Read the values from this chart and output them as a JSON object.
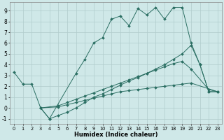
{
  "xlabel": "Humidex (Indice chaleur)",
  "background_color": "#cfe8e8",
  "grid_color": "#b0cccc",
  "line_color": "#2a6e62",
  "xlim": [
    -0.5,
    23.5
  ],
  "ylim": [
    -1.5,
    9.8
  ],
  "yticks": [
    -1,
    0,
    1,
    2,
    3,
    4,
    5,
    6,
    7,
    8,
    9
  ],
  "xticks": [
    0,
    1,
    2,
    3,
    4,
    5,
    6,
    7,
    8,
    9,
    10,
    11,
    12,
    13,
    14,
    15,
    16,
    17,
    18,
    19,
    20,
    21,
    22,
    23
  ],
  "series": [
    {
      "x": [
        0,
        1,
        2,
        3,
        4,
        7,
        8,
        9,
        10,
        11,
        12,
        13,
        14,
        15,
        16,
        17,
        18,
        19,
        20,
        21,
        22,
        23
      ],
      "y": [
        3.3,
        2.2,
        2.2,
        0.0,
        -1.0,
        3.2,
        4.5,
        6.0,
        6.5,
        8.2,
        8.5,
        7.6,
        9.2,
        8.6,
        9.3,
        8.2,
        9.3,
        9.3,
        6.0,
        4.0,
        1.5,
        1.5
      ]
    },
    {
      "x": [
        3,
        4,
        5,
        6,
        7,
        8,
        9,
        10,
        11,
        12,
        13,
        14,
        15,
        16,
        17,
        18,
        19,
        20,
        21,
        22,
        23
      ],
      "y": [
        0.0,
        -1.0,
        -0.7,
        -0.4,
        0.0,
        0.5,
        1.0,
        1.3,
        1.7,
        2.1,
        2.5,
        2.8,
        3.2,
        3.6,
        4.0,
        4.5,
        5.0,
        5.8,
        4.0,
        1.5,
        1.5
      ]
    },
    {
      "x": [
        3,
        5,
        6,
        7,
        8,
        9,
        10,
        11,
        12,
        13,
        14,
        15,
        16,
        17,
        18,
        19,
        20,
        22,
        23
      ],
      "y": [
        0.0,
        0.2,
        0.5,
        0.8,
        1.1,
        1.4,
        1.7,
        2.0,
        2.3,
        2.6,
        2.9,
        3.2,
        3.5,
        3.8,
        4.1,
        4.3,
        3.6,
        1.7,
        1.5
      ]
    },
    {
      "x": [
        3,
        5,
        6,
        7,
        8,
        9,
        10,
        11,
        12,
        13,
        14,
        15,
        16,
        17,
        18,
        19,
        20,
        23
      ],
      "y": [
        0.0,
        0.1,
        0.3,
        0.5,
        0.7,
        0.9,
        1.1,
        1.3,
        1.5,
        1.6,
        1.7,
        1.8,
        1.9,
        2.0,
        2.1,
        2.2,
        2.3,
        1.5
      ]
    }
  ]
}
